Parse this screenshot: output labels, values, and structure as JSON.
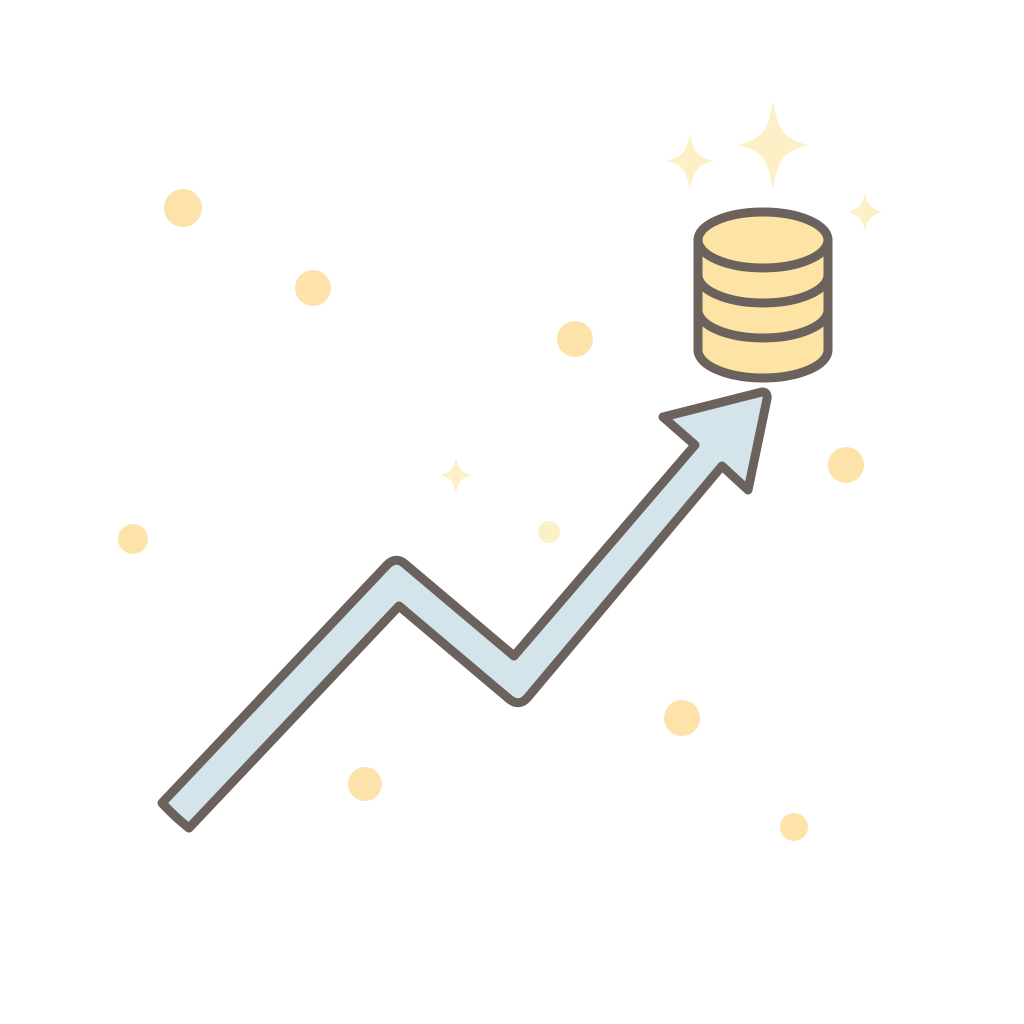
{
  "illustration": {
    "colors": {
      "background": "#ffffff",
      "outline": "#6b625d",
      "arrow_fill": "#d3e4ea",
      "coin_fill": "#fde4a5",
      "dot_fill": "#fde2aa",
      "sparkle_fill": "#fdf0c6"
    },
    "icons": {
      "arrow": "growth-arrow-icon",
      "coins": "coin-stack-icon",
      "sparkle": "sparkle-icon",
      "dot": "dot-icon"
    }
  }
}
